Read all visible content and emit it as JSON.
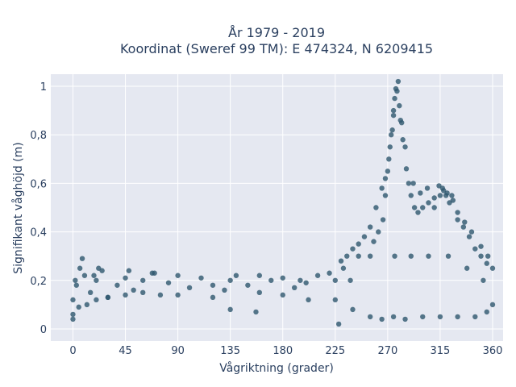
{
  "chart_data": {
    "type": "scatter",
    "title_line1": "År 1979 - 2019",
    "title_line2": "Koordinat (Sweref 99 TM): E 474324, N 6209415",
    "xlabel": "Vågriktning (grader)",
    "ylabel": "Signifikant våghöjd (m)",
    "xlim": [
      -19,
      369
    ],
    "ylim": [
      -0.05,
      1.05
    ],
    "x_ticks": [
      0,
      45,
      90,
      135,
      180,
      225,
      270,
      315,
      360
    ],
    "x_tick_labels": [
      "0",
      "45",
      "90",
      "135",
      "180",
      "225",
      "270",
      "315",
      "360"
    ],
    "y_ticks": [
      0,
      0.2,
      0.4,
      0.6,
      0.8,
      1
    ],
    "y_tick_labels": [
      "0",
      "0,2",
      "0,4",
      "0,6",
      "0,8",
      "1"
    ],
    "grid": true,
    "series": [
      {
        "marker_color": "#2e566e",
        "x": [
          0,
          3,
          6,
          10,
          15,
          20,
          25,
          30,
          38,
          45,
          52,
          60,
          68,
          75,
          82,
          90,
          100,
          110,
          120,
          130,
          135,
          140,
          150,
          160,
          170,
          180,
          190,
          200,
          210,
          220,
          225,
          230,
          235,
          240,
          245,
          250,
          255,
          260,
          265,
          268,
          270,
          272,
          274,
          275,
          276,
          278,
          280,
          282,
          285,
          288,
          290,
          293,
          296,
          300,
          305,
          310,
          315,
          318,
          320,
          323,
          326,
          330,
          335,
          340,
          345,
          350,
          355,
          360,
          0,
          5,
          12,
          20,
          30,
          45,
          60,
          90,
          120,
          180,
          225,
          240,
          255,
          265,
          275,
          285,
          300,
          315,
          330,
          345,
          355,
          360,
          8,
          22,
          48,
          70,
          135,
          157,
          202,
          228,
          238,
          255,
          262,
          268,
          271,
          273,
          275,
          277,
          279,
          281,
          283,
          286,
          292,
          298,
          304,
          310,
          314,
          317,
          321,
          325,
          330,
          336,
          342,
          350,
          356,
          0,
          2,
          18,
          160,
          195,
          232,
          245,
          258,
          266,
          276,
          290,
          305,
          322,
          338,
          352
        ],
        "y": [
          0.12,
          0.18,
          0.25,
          0.22,
          0.15,
          0.2,
          0.24,
          0.13,
          0.18,
          0.21,
          0.16,
          0.2,
          0.23,
          0.14,
          0.19,
          0.22,
          0.17,
          0.21,
          0.18,
          0.16,
          0.2,
          0.22,
          0.18,
          0.15,
          0.2,
          0.21,
          0.17,
          0.19,
          0.22,
          0.23,
          0.2,
          0.28,
          0.3,
          0.33,
          0.35,
          0.38,
          0.42,
          0.5,
          0.58,
          0.62,
          0.65,
          0.75,
          0.82,
          0.9,
          0.95,
          0.98,
          0.92,
          0.85,
          0.75,
          0.6,
          0.55,
          0.5,
          0.48,
          0.5,
          0.52,
          0.5,
          0.55,
          0.57,
          0.55,
          0.52,
          0.53,
          0.45,
          0.42,
          0.38,
          0.33,
          0.3,
          0.27,
          0.25,
          0.06,
          0.09,
          0.1,
          0.12,
          0.13,
          0.14,
          0.15,
          0.14,
          0.13,
          0.14,
          0.12,
          0.08,
          0.05,
          0.04,
          0.05,
          0.04,
          0.05,
          0.05,
          0.05,
          0.05,
          0.07,
          0.1,
          0.29,
          0.25,
          0.24,
          0.23,
          0.08,
          0.07,
          0.12,
          0.02,
          0.2,
          0.3,
          0.4,
          0.55,
          0.7,
          0.8,
          0.88,
          0.99,
          1.02,
          0.86,
          0.78,
          0.66,
          0.6,
          0.56,
          0.58,
          0.54,
          0.59,
          0.58,
          0.56,
          0.55,
          0.48,
          0.44,
          0.4,
          0.34,
          0.3,
          0.04,
          0.2,
          0.22,
          0.22,
          0.2,
          0.25,
          0.3,
          0.36,
          0.45,
          0.3,
          0.3,
          0.3,
          0.3,
          0.25,
          0.2
        ]
      }
    ]
  }
}
